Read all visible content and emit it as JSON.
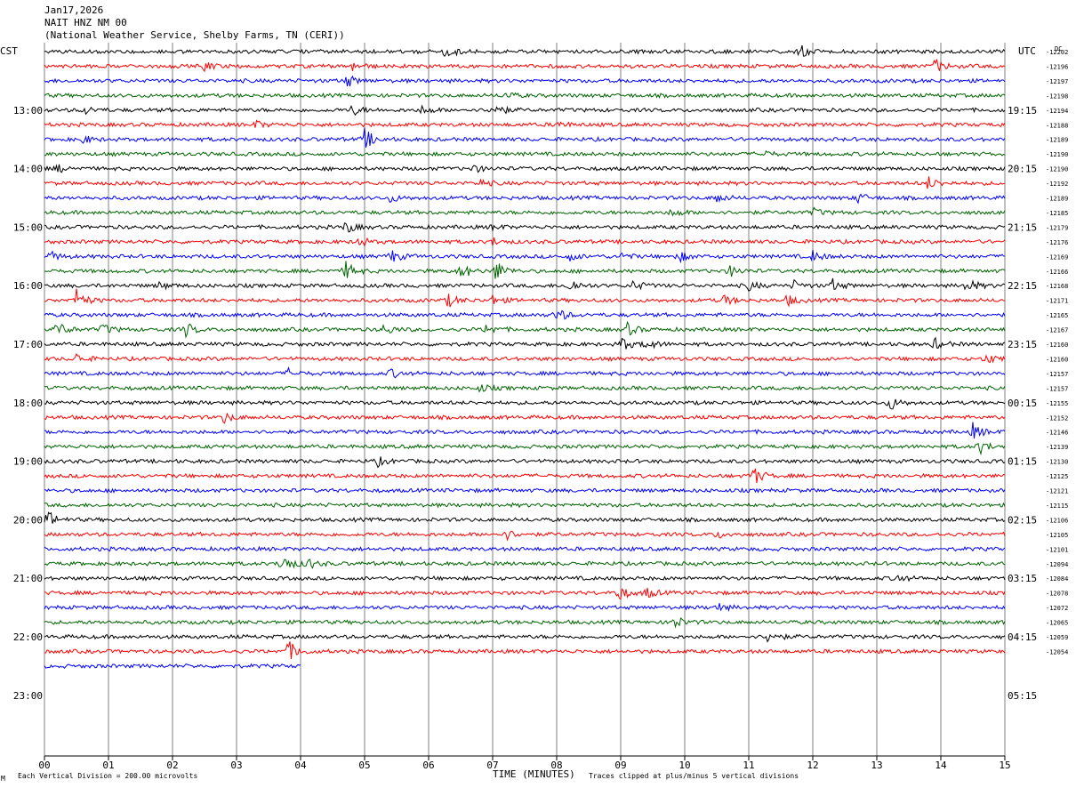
{
  "header": {
    "date": "Jan17,2026",
    "station": "NAIT HNZ NM 00",
    "source": "(National Weather Service, Shelby Farms, TN (CERI))"
  },
  "axis": {
    "left_tz": "CST",
    "right_tz": "UTC",
    "dc_header": "DC",
    "xlabel": "TIME (MINUTES)",
    "footer_left": "Each Vertical Division =  200.00 microvolts",
    "footer_right": "Traces clipped at plus/minus 5 vertical divisions",
    "corner_mark": "M"
  },
  "colors": {
    "trace_cycle": [
      "#000000",
      "#ff0000",
      "#0000ff",
      "#006400"
    ],
    "grid": "#808080"
  },
  "chart_data": {
    "type": "line",
    "title": "",
    "xlabel": "TIME (MINUTES)",
    "x_ticks": [
      "00",
      "01",
      "02",
      "03",
      "04",
      "05",
      "06",
      "07",
      "08",
      "09",
      "10",
      "11",
      "12",
      "13",
      "14",
      "15"
    ],
    "xlim": [
      0,
      15
    ],
    "grid": true,
    "minutes_per_line": 15,
    "lines_plotted": 43,
    "last_line_end_minute": 4,
    "left_hour_labels": [
      "13:00",
      "14:00",
      "15:00",
      "16:00",
      "17:00",
      "18:00",
      "19:00",
      "20:00",
      "21:00",
      "22:00",
      "23:00"
    ],
    "right_hour_labels": [
      "19:15",
      "20:15",
      "21:15",
      "22:15",
      "23:15",
      "00:15",
      "01:15",
      "02:15",
      "03:15",
      "04:15",
      "05:15"
    ],
    "dc_offsets": [
      -12202,
      -12196,
      -12197,
      -12198,
      -12194,
      -12188,
      -12189,
      -12190,
      -12190,
      -12192,
      -12189,
      -12185,
      -12179,
      -12176,
      -12169,
      -12166,
      -12168,
      -12171,
      -12165,
      -12167,
      -12160,
      -12160,
      -12157,
      -12157,
      -12155,
      -12152,
      -12146,
      -12139,
      -12130,
      -12125,
      -12121,
      -12115,
      -12106,
      -12105,
      -12101,
      -12094,
      -12084,
      -12078,
      -12072,
      -12065,
      -12059,
      -12054
    ],
    "events": [
      [
        0,
        6.25,
        9
      ],
      [
        0,
        11.8,
        6
      ],
      [
        1,
        2.5,
        5
      ],
      [
        1,
        4.8,
        5
      ],
      [
        1,
        13.9,
        8
      ],
      [
        2,
        4.7,
        8
      ],
      [
        3,
        7.2,
        4
      ],
      [
        4,
        0.6,
        5
      ],
      [
        4,
        4.8,
        6
      ],
      [
        4,
        5.9,
        5
      ],
      [
        4,
        7.0,
        10
      ],
      [
        5,
        3.3,
        4
      ],
      [
        5,
        8.0,
        4
      ],
      [
        6,
        0.6,
        4
      ],
      [
        6,
        5.0,
        12
      ],
      [
        7,
        11.2,
        4
      ],
      [
        8,
        0.2,
        4
      ],
      [
        8,
        6.7,
        4
      ],
      [
        9,
        6.8,
        4
      ],
      [
        9,
        13.8,
        7
      ],
      [
        10,
        5.4,
        4
      ],
      [
        10,
        10.5,
        5
      ],
      [
        10,
        12.7,
        6
      ],
      [
        11,
        9.8,
        5
      ],
      [
        11,
        12.0,
        4
      ],
      [
        12,
        4.7,
        7
      ],
      [
        12,
        7.0,
        3
      ],
      [
        13,
        7.0,
        4
      ],
      [
        13,
        4.9,
        6
      ],
      [
        14,
        0.1,
        5
      ],
      [
        14,
        5.4,
        8
      ],
      [
        14,
        8.2,
        4
      ],
      [
        14,
        9.0,
        4
      ],
      [
        14,
        9.9,
        6
      ],
      [
        14,
        12.0,
        6
      ],
      [
        15,
        4.7,
        10
      ],
      [
        15,
        6.5,
        9
      ],
      [
        15,
        7.05,
        12
      ],
      [
        15,
        10.7,
        6
      ],
      [
        16,
        1.8,
        4
      ],
      [
        16,
        8.2,
        8
      ],
      [
        16,
        9.2,
        6
      ],
      [
        16,
        11.0,
        5
      ],
      [
        16,
        11.7,
        5
      ],
      [
        16,
        12.3,
        7
      ],
      [
        16,
        14.4,
        9
      ],
      [
        17,
        0.5,
        12
      ],
      [
        17,
        6.3,
        7
      ],
      [
        17,
        7.0,
        5
      ],
      [
        17,
        10.6,
        6
      ],
      [
        17,
        11.6,
        6
      ],
      [
        18,
        8.0,
        8
      ],
      [
        19,
        0.2,
        9
      ],
      [
        19,
        0.9,
        6
      ],
      [
        19,
        2.2,
        8
      ],
      [
        19,
        5.3,
        6
      ],
      [
        19,
        6.9,
        6
      ],
      [
        19,
        9.1,
        7
      ],
      [
        20,
        9.0,
        8
      ],
      [
        20,
        9.4,
        6
      ],
      [
        20,
        13.9,
        6
      ],
      [
        21,
        0.5,
        5
      ],
      [
        21,
        14.7,
        6
      ],
      [
        22,
        3.8,
        5
      ],
      [
        22,
        5.4,
        5
      ],
      [
        23,
        6.8,
        4
      ],
      [
        24,
        13.2,
        8
      ],
      [
        25,
        2.8,
        6
      ],
      [
        26,
        14.5,
        9
      ],
      [
        27,
        14.6,
        8
      ],
      [
        28,
        5.2,
        5
      ],
      [
        29,
        11.05,
        12
      ],
      [
        32,
        0.05,
        10
      ],
      [
        33,
        7.2,
        6
      ],
      [
        33,
        10.5,
        4
      ],
      [
        35,
        3.7,
        13
      ],
      [
        35,
        4.1,
        6
      ],
      [
        36,
        13.3,
        5
      ],
      [
        37,
        8.95,
        10
      ],
      [
        37,
        9.4,
        6
      ],
      [
        38,
        10.5,
        5
      ],
      [
        39,
        9.8,
        9
      ],
      [
        40,
        11.3,
        8
      ],
      [
        41,
        3.8,
        12
      ]
    ]
  }
}
